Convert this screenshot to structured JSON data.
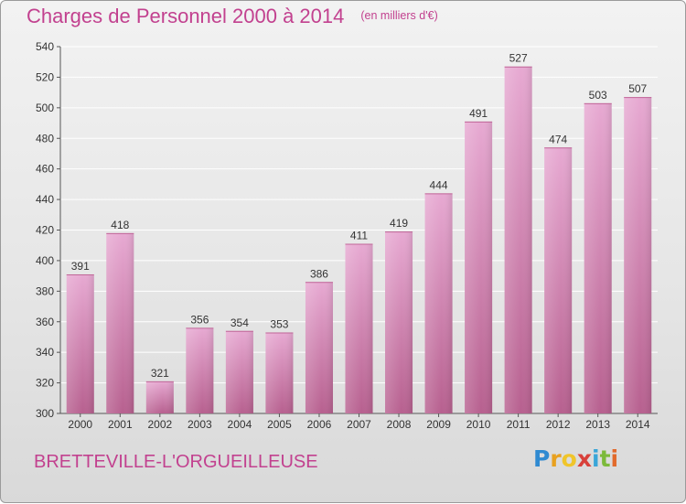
{
  "title": "Charges de Personnel 2000 à 2014",
  "subtitle": "(en milliers d'€)",
  "commune": "BRETTEVILLE-L'ORGUEILLEUSE",
  "logo": {
    "text": "Proxiti",
    "letter_colors": [
      "#2f8ad1",
      "#e8a11f",
      "#f0c52a",
      "#d8403a",
      "#3aa6d8",
      "#7cba3a",
      "#e26a2c"
    ]
  },
  "colors": {
    "accent": "#c2418f",
    "bar_top": "#e7a9d2",
    "bar_bottom": "#b7608f",
    "grid": "#ffffff",
    "background": "#e6e6e6"
  },
  "chart_data": {
    "type": "bar",
    "categories": [
      "2000",
      "2001",
      "2002",
      "2003",
      "2004",
      "2005",
      "2006",
      "2007",
      "2008",
      "2009",
      "2010",
      "2011",
      "2012",
      "2013",
      "2014"
    ],
    "values": [
      391,
      418,
      321,
      356,
      354,
      353,
      386,
      411,
      419,
      444,
      491,
      527,
      474,
      503,
      507
    ],
    "title": "Charges de Personnel 2000 à 2014",
    "subtitle": "(en milliers d'€)",
    "ylim": [
      300,
      540
    ],
    "yticks": [
      300,
      320,
      340,
      360,
      380,
      400,
      420,
      440,
      460,
      480,
      500,
      520,
      540
    ],
    "grid": true,
    "data_labels": true
  }
}
